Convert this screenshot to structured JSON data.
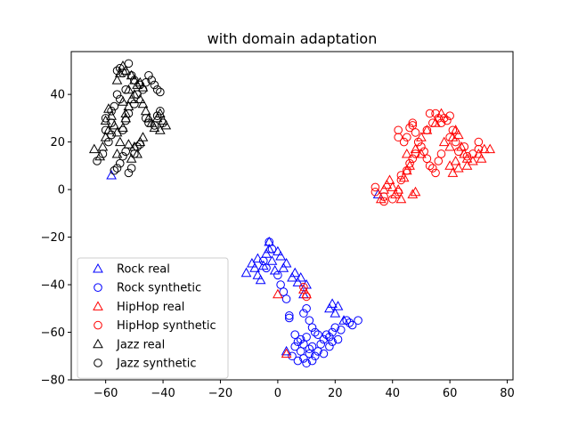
{
  "chart_data": {
    "type": "scatter",
    "title": "with domain adaptation",
    "xlabel": "",
    "ylabel": "",
    "xlim": [
      -72,
      82
    ],
    "ylim": [
      -80,
      58
    ],
    "xticks": [
      -60,
      -40,
      -20,
      0,
      20,
      40,
      60,
      80
    ],
    "yticks": [
      -80,
      -60,
      -40,
      -20,
      0,
      20,
      40
    ],
    "xtick_labels": [
      "−60",
      "−40",
      "−20",
      "0",
      "20",
      "40",
      "60",
      "80"
    ],
    "ytick_labels": [
      "−80",
      "−60",
      "−40",
      "−20",
      "0",
      "20",
      "40"
    ],
    "grid": false,
    "legend_position": "lower-left",
    "series": [
      {
        "name": "Rock real",
        "color": "#0000ff",
        "marker": "triangle",
        "points": [
          [
            -58,
            6
          ],
          [
            -11,
            -35
          ],
          [
            -9,
            -31
          ],
          [
            -8,
            -33
          ],
          [
            -7,
            -36
          ],
          [
            -7,
            -29
          ],
          [
            -6,
            -38
          ],
          [
            -5,
            -32
          ],
          [
            -4,
            -27
          ],
          [
            -3,
            -25
          ],
          [
            -3,
            -22
          ],
          [
            -2,
            -30
          ],
          [
            -1,
            -34
          ],
          [
            0,
            -26
          ],
          [
            1,
            -28
          ],
          [
            2,
            -33
          ],
          [
            3,
            -31
          ],
          [
            5,
            -37
          ],
          [
            6,
            -35
          ],
          [
            7,
            -39
          ],
          [
            8,
            -37
          ],
          [
            10,
            -40
          ],
          [
            9,
            -44
          ],
          [
            18,
            -50
          ],
          [
            19,
            -48
          ],
          [
            20,
            -52
          ],
          [
            21,
            -49
          ],
          [
            23,
            -55
          ],
          [
            3,
            -68
          ],
          [
            35,
            -2
          ]
        ]
      },
      {
        "name": "Rock synthetic",
        "color": "#0000ff",
        "marker": "circle",
        "points": [
          [
            -3,
            -22
          ],
          [
            -2,
            -25
          ],
          [
            -5,
            -30
          ],
          [
            -4,
            -33
          ],
          [
            0,
            -36
          ],
          [
            1,
            -40
          ],
          [
            2,
            -43
          ],
          [
            3,
            -46
          ],
          [
            4,
            -53
          ],
          [
            4,
            -54
          ],
          [
            9,
            -52
          ],
          [
            10,
            -50
          ],
          [
            11,
            -55
          ],
          [
            12,
            -58
          ],
          [
            13,
            -60
          ],
          [
            14,
            -61
          ],
          [
            6,
            -61
          ],
          [
            7,
            -64
          ],
          [
            8,
            -63
          ],
          [
            9,
            -65
          ],
          [
            10,
            -62
          ],
          [
            11,
            -67
          ],
          [
            12,
            -66
          ],
          [
            13,
            -70
          ],
          [
            14,
            -68
          ],
          [
            8,
            -68
          ],
          [
            9,
            -71
          ],
          [
            10,
            -73
          ],
          [
            11,
            -69
          ],
          [
            12,
            -72
          ],
          [
            15,
            -65
          ],
          [
            16,
            -63
          ],
          [
            17,
            -61
          ],
          [
            18,
            -62
          ],
          [
            19,
            -60
          ],
          [
            20,
            -58
          ],
          [
            21,
            -63
          ],
          [
            22,
            -59
          ],
          [
            24,
            -55
          ],
          [
            25,
            -56
          ],
          [
            26,
            -57
          ],
          [
            28,
            -55
          ],
          [
            5,
            -70
          ],
          [
            6,
            -66
          ],
          [
            7,
            -72
          ],
          [
            19,
            -64
          ],
          [
            18,
            -66
          ],
          [
            16,
            -69
          ]
        ]
      },
      {
        "name": "HipHop real",
        "color": "#ff0000",
        "marker": "triangle",
        "points": [
          [
            36,
            -4
          ],
          [
            37,
            0
          ],
          [
            38,
            2
          ],
          [
            39,
            4
          ],
          [
            40,
            1
          ],
          [
            41,
            -2
          ],
          [
            42,
            0
          ],
          [
            43,
            -4
          ],
          [
            44,
            5
          ],
          [
            45,
            8
          ],
          [
            46,
            10
          ],
          [
            48,
            -1
          ],
          [
            47,
            -2
          ],
          [
            45,
            15
          ],
          [
            48,
            17
          ],
          [
            50,
            15
          ],
          [
            50,
            22
          ],
          [
            52,
            25
          ],
          [
            55,
            28
          ],
          [
            57,
            32
          ],
          [
            58,
            20
          ],
          [
            60,
            18
          ],
          [
            61,
            22
          ],
          [
            62,
            25
          ],
          [
            63,
            23
          ],
          [
            64,
            18
          ],
          [
            65,
            15
          ],
          [
            66,
            13
          ],
          [
            62,
            12
          ],
          [
            60,
            10
          ],
          [
            61,
            7
          ],
          [
            63,
            9
          ],
          [
            66,
            10
          ],
          [
            68,
            12
          ],
          [
            70,
            15
          ],
          [
            72,
            17
          ],
          [
            74,
            17
          ],
          [
            71,
            13
          ],
          [
            0,
            -44
          ],
          [
            9,
            -42
          ],
          [
            10,
            -44
          ],
          [
            3,
            -69
          ]
        ]
      },
      {
        "name": "HipHop synthetic",
        "color": "#ff0000",
        "marker": "circle",
        "points": [
          [
            34,
            1
          ],
          [
            34,
            -1
          ],
          [
            37,
            -3
          ],
          [
            37,
            -5
          ],
          [
            40,
            -4
          ],
          [
            42,
            -1
          ],
          [
            43,
            4
          ],
          [
            43,
            6
          ],
          [
            45,
            8
          ],
          [
            46,
            11
          ],
          [
            47,
            13
          ],
          [
            48,
            15
          ],
          [
            44,
            20
          ],
          [
            45,
            22
          ],
          [
            46,
            26
          ],
          [
            47,
            27
          ],
          [
            48,
            24
          ],
          [
            49,
            20
          ],
          [
            50,
            18
          ],
          [
            51,
            16
          ],
          [
            52,
            13
          ],
          [
            53,
            10
          ],
          [
            54,
            9
          ],
          [
            55,
            7
          ],
          [
            56,
            12
          ],
          [
            57,
            15
          ],
          [
            52,
            25
          ],
          [
            54,
            28
          ],
          [
            53,
            32
          ],
          [
            55,
            32
          ],
          [
            56,
            30
          ],
          [
            57,
            28
          ],
          [
            58,
            30
          ],
          [
            59,
            29
          ],
          [
            60,
            31
          ],
          [
            61,
            25
          ],
          [
            60,
            22
          ],
          [
            62,
            20
          ],
          [
            63,
            16
          ],
          [
            65,
            18
          ],
          [
            66,
            14
          ],
          [
            70,
            20
          ],
          [
            70,
            17
          ],
          [
            68,
            15
          ],
          [
            42,
            25
          ],
          [
            42,
            22
          ],
          [
            47,
            28
          ],
          [
            9,
            -41
          ],
          [
            10,
            -45
          ]
        ]
      },
      {
        "name": "Jazz real",
        "color": "#000000",
        "marker": "triangle",
        "points": [
          [
            -64,
            17
          ],
          [
            -62,
            14
          ],
          [
            -61,
            18
          ],
          [
            -60,
            22
          ],
          [
            -59,
            25
          ],
          [
            -60,
            29
          ],
          [
            -59,
            34
          ],
          [
            -58,
            31
          ],
          [
            -57,
            27
          ],
          [
            -56,
            24
          ],
          [
            -55,
            20
          ],
          [
            -54,
            26
          ],
          [
            -53,
            30
          ],
          [
            -52,
            35
          ],
          [
            -51,
            38
          ],
          [
            -50,
            40
          ],
          [
            -49,
            44
          ],
          [
            -48,
            45
          ],
          [
            -47,
            43
          ],
          [
            -50,
            46
          ],
          [
            -51,
            48
          ],
          [
            -53,
            50
          ],
          [
            -54,
            52
          ],
          [
            -55,
            49
          ],
          [
            -56,
            46
          ],
          [
            -52,
            42
          ],
          [
            -48,
            38
          ],
          [
            -47,
            36
          ],
          [
            -46,
            33
          ],
          [
            -45,
            30
          ],
          [
            -44,
            28
          ],
          [
            -43,
            26
          ],
          [
            -42,
            30
          ],
          [
            -41,
            32
          ],
          [
            -40,
            29
          ],
          [
            -39,
            27
          ],
          [
            -41,
            25
          ],
          [
            -50,
            18
          ],
          [
            -49,
            15
          ],
          [
            -51,
            13
          ],
          [
            -52,
            19
          ],
          [
            -48,
            20
          ],
          [
            -47,
            22
          ],
          [
            -54,
            37
          ],
          [
            -53,
            32
          ],
          [
            -56,
            15
          ]
        ]
      },
      {
        "name": "Jazz synthetic",
        "color": "#000000",
        "marker": "circle",
        "points": [
          [
            -63,
            12
          ],
          [
            -61,
            15
          ],
          [
            -59,
            20
          ],
          [
            -58,
            23
          ],
          [
            -60,
            30
          ],
          [
            -58,
            33
          ],
          [
            -57,
            35
          ],
          [
            -57,
            8
          ],
          [
            -56,
            9
          ],
          [
            -55,
            11
          ],
          [
            -54,
            14
          ],
          [
            -53,
            16
          ],
          [
            -52,
            7
          ],
          [
            -51,
            9
          ],
          [
            -50,
            15
          ],
          [
            -49,
            18
          ],
          [
            -48,
            19
          ],
          [
            -54,
            25
          ],
          [
            -53,
            29
          ],
          [
            -52,
            32
          ],
          [
            -50,
            36
          ],
          [
            -49,
            40
          ],
          [
            -47,
            42
          ],
          [
            -46,
            45
          ],
          [
            -45,
            48
          ],
          [
            -44,
            46
          ],
          [
            -43,
            44
          ],
          [
            -42,
            42
          ],
          [
            -41,
            41
          ],
          [
            -56,
            50
          ],
          [
            -55,
            51
          ],
          [
            -54,
            49
          ],
          [
            -52,
            53
          ],
          [
            -51,
            48
          ],
          [
            -50,
            46
          ],
          [
            -48,
            44
          ],
          [
            -46,
            30
          ],
          [
            -45,
            28
          ],
          [
            -43,
            27
          ],
          [
            -42,
            31
          ],
          [
            -41,
            33
          ],
          [
            -40,
            28
          ],
          [
            -55,
            38
          ],
          [
            -56,
            40
          ],
          [
            -53,
            42
          ],
          [
            -58,
            28
          ],
          [
            -60,
            25
          ]
        ]
      }
    ]
  }
}
